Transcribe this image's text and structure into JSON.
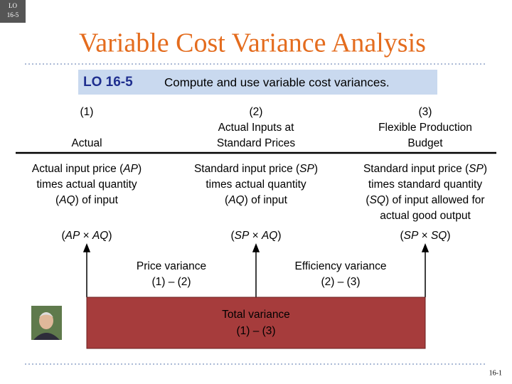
{
  "corner_badge": [
    "LO",
    "16-5"
  ],
  "title": "Variable Cost Variance Analysis",
  "objective": {
    "code": "LO 16-5",
    "text": "Compute and use variable cost variances."
  },
  "columns": [
    {
      "number": "(1)",
      "heading": [
        "Actual"
      ],
      "description": [
        [
          "Actual input price (",
          {
            "italic": "AP"
          },
          ")"
        ],
        [
          "times actual quantity"
        ],
        [
          "(",
          {
            "italic": "AQ"
          },
          ") of input"
        ]
      ],
      "formula": [
        "(",
        {
          "italic": "AP"
        },
        " × ",
        {
          "italic": "AQ"
        },
        ")"
      ]
    },
    {
      "number": "(2)",
      "heading": [
        "Actual Inputs at",
        "Standard Prices"
      ],
      "description": [
        [
          "Standard input price (",
          {
            "italic": "SP"
          },
          ")"
        ],
        [
          "times actual quantity"
        ],
        [
          "(",
          {
            "italic": "AQ"
          },
          ") of input"
        ]
      ],
      "formula": [
        "(",
        {
          "italic": "SP"
        },
        " × ",
        {
          "italic": "AQ"
        },
        ")"
      ]
    },
    {
      "number": "(3)",
      "heading": [
        "Flexible Production",
        "Budget"
      ],
      "description": [
        [
          "Standard input price (",
          {
            "italic": "SP"
          },
          ")"
        ],
        [
          "times standard quantity"
        ],
        [
          "(",
          {
            "italic": "SQ"
          },
          ") of input allowed for"
        ],
        [
          "actual good output"
        ]
      ],
      "formula": [
        "(",
        {
          "italic": "SP"
        },
        " × ",
        {
          "italic": "SQ"
        },
        ")"
      ]
    }
  ],
  "variances": [
    {
      "label": "Price variance",
      "formula": "(1) – (2)"
    },
    {
      "label": "Efficiency variance",
      "formula": "(2) – (3)"
    }
  ],
  "total": {
    "label": "Total variance",
    "formula": "(1) – (3)"
  },
  "page_number": "16-1"
}
